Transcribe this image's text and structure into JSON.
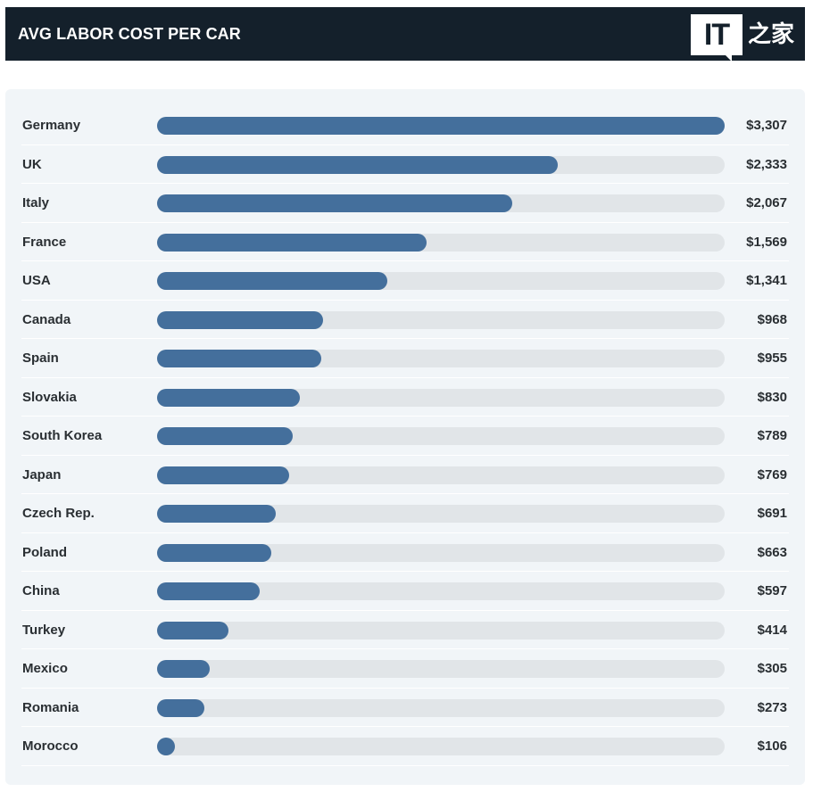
{
  "header": {
    "title": "AVG LABOR COST PER CAR",
    "logo_mark": "IT",
    "logo_text": "之家"
  },
  "colors": {
    "header_bg": "#14202b",
    "bar_fill": "#446f9c",
    "bar_track": "#e1e5e8",
    "panel_bg": "#f1f5f8"
  },
  "chart_data": {
    "type": "bar",
    "orientation": "horizontal",
    "title": "AVG LABOR COST PER CAR",
    "unit": "USD",
    "categories": [
      "Germany",
      "UK",
      "Italy",
      "France",
      "USA",
      "Canada",
      "Spain",
      "Slovakia",
      "South Korea",
      "Japan",
      "Czech Rep.",
      "Poland",
      "China",
      "Turkey",
      "Mexico",
      "Romania",
      "Morocco"
    ],
    "values": [
      3307,
      2333,
      2067,
      1569,
      1341,
      968,
      955,
      830,
      789,
      769,
      691,
      663,
      597,
      414,
      305,
      273,
      106
    ],
    "value_labels": [
      "$3,307",
      "$2,333",
      "$2,067",
      "$1,569",
      "$1,341",
      "$968",
      "$955",
      "$830",
      "$789",
      "$769",
      "$691",
      "$663",
      "$597",
      "$414",
      "$305",
      "$273",
      "$106"
    ],
    "xlim": [
      0,
      3307
    ]
  }
}
